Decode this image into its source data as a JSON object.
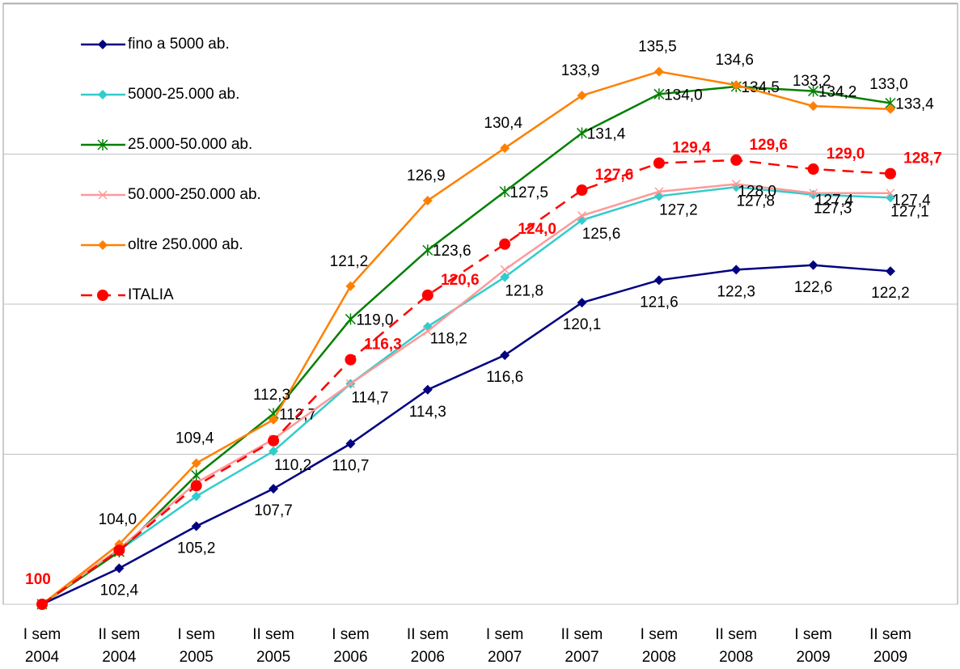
{
  "chart_data": {
    "type": "line",
    "categories": [
      "I sem 2004",
      "II sem 2004",
      "I sem 2005",
      "II sem 2005",
      "I sem 2006",
      "II sem 2006",
      "I sem 2007",
      "II sem 2007",
      "I sem 2008",
      "II sem 2008",
      "I sem 2009",
      "II sem 2009"
    ],
    "series": [
      {
        "name": "fino a 5000 ab.",
        "color": "#000080",
        "marker": "diamond",
        "values": [
          100,
          102.4,
          105.2,
          107.7,
          110.7,
          114.3,
          116.6,
          120.1,
          121.6,
          122.3,
          122.6,
          122.2
        ],
        "value_labels": [
          null,
          "102,4",
          "105,2",
          "107,7",
          "110,7",
          "114,3",
          "116,6",
          "120,1",
          "121,6",
          "122,3",
          "122,6",
          "122,2"
        ]
      },
      {
        "name": "5000-25.000 ab.",
        "color": "#33cccc",
        "marker": "diamond",
        "values": [
          100,
          103.6,
          107.2,
          110.2,
          114.7,
          118.5,
          121.8,
          125.6,
          127.2,
          127.8,
          127.3,
          127.1
        ],
        "value_labels": [
          null,
          null,
          null,
          "110,2",
          "114,7",
          null,
          "121,8",
          "125,6",
          "127,2",
          "127,8",
          "127,3",
          "127,1"
        ]
      },
      {
        "name": "25.000-50.000 ab.",
        "color": "#008000",
        "marker": "asterisk",
        "values": [
          100,
          103.5,
          108.6,
          112.7,
          119.0,
          123.6,
          127.5,
          131.4,
          134.0,
          134.5,
          134.2,
          133.4
        ],
        "value_labels": [
          null,
          null,
          null,
          "112,7",
          "119,0",
          "123,6",
          "127,5",
          "131,4",
          "134,0",
          "134,5",
          "134,2",
          "133,4"
        ]
      },
      {
        "name": "50.000-250.000 ab.",
        "color": "#ff9999",
        "marker": "x",
        "values": [
          100,
          103.7,
          108.1,
          111.0,
          114.7,
          118.2,
          122.3,
          125.9,
          127.5,
          128.0,
          127.4,
          127.4
        ],
        "value_labels": [
          null,
          null,
          null,
          null,
          null,
          "118,2",
          null,
          null,
          null,
          "128,0",
          "127,4",
          "127,4"
        ]
      },
      {
        "name": "oltre 250.000 ab.",
        "color": "#ff8000",
        "marker": "diamond",
        "values": [
          100,
          104.0,
          109.4,
          112.3,
          121.2,
          126.9,
          130.4,
          133.9,
          135.5,
          134.6,
          133.2,
          133.0
        ],
        "value_labels": [
          null,
          "104,0",
          "109,4",
          "112,3",
          "121,2",
          "126,9",
          "130,4",
          "133,9",
          "135,5",
          "134,6",
          "133,2",
          "133,0"
        ]
      },
      {
        "name": "ITALIA",
        "color": "#ff0000",
        "marker": "circle",
        "dashed": true,
        "bold_labels": true,
        "values": [
          100,
          103.6,
          107.9,
          110.9,
          116.3,
          120.6,
          124.0,
          127.6,
          129.4,
          129.6,
          129.0,
          128.7
        ],
        "value_labels": [
          "100",
          null,
          null,
          null,
          "116,3",
          "120,6",
          "124,0",
          "127,6",
          "129,4",
          "129,6",
          "129,0",
          "128,7"
        ]
      }
    ],
    "ylim": [
      100,
      140
    ],
    "yticks": [
      100,
      110,
      120,
      130,
      140
    ],
    "show_ytick_labels": false,
    "grid": true,
    "legend": "top-left"
  }
}
